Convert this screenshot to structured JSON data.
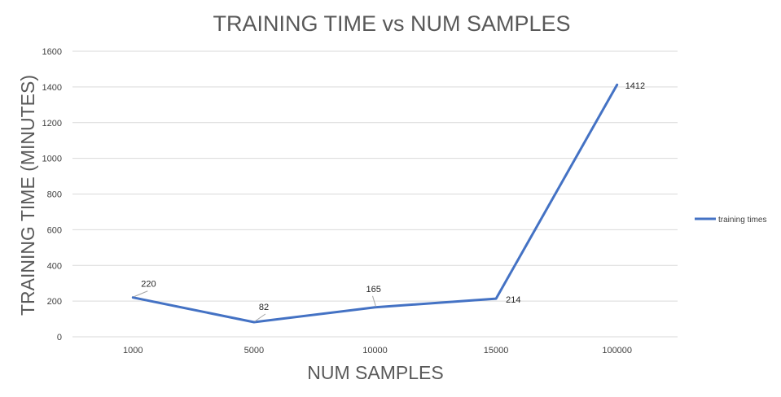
{
  "chart_data": {
    "type": "line",
    "title": "TRAINING TIME vs NUM SAMPLES",
    "xlabel": "NUM SAMPLES",
    "ylabel": "TRAINING TIME (MINUTES)",
    "categories": [
      "1000",
      "5000",
      "10000",
      "15000",
      "100000"
    ],
    "series": [
      {
        "name": "training times",
        "values": [
          220,
          82,
          165,
          214,
          1412
        ],
        "color": "#4472c4"
      }
    ],
    "data_labels": [
      "220",
      "82",
      "165",
      "214",
      "1412"
    ],
    "ylim": [
      0,
      1600
    ],
    "yticks": [
      "0",
      "200",
      "400",
      "600",
      "800",
      "1000",
      "1200",
      "1400",
      "1600"
    ],
    "grid": true,
    "legend_position": "right"
  }
}
